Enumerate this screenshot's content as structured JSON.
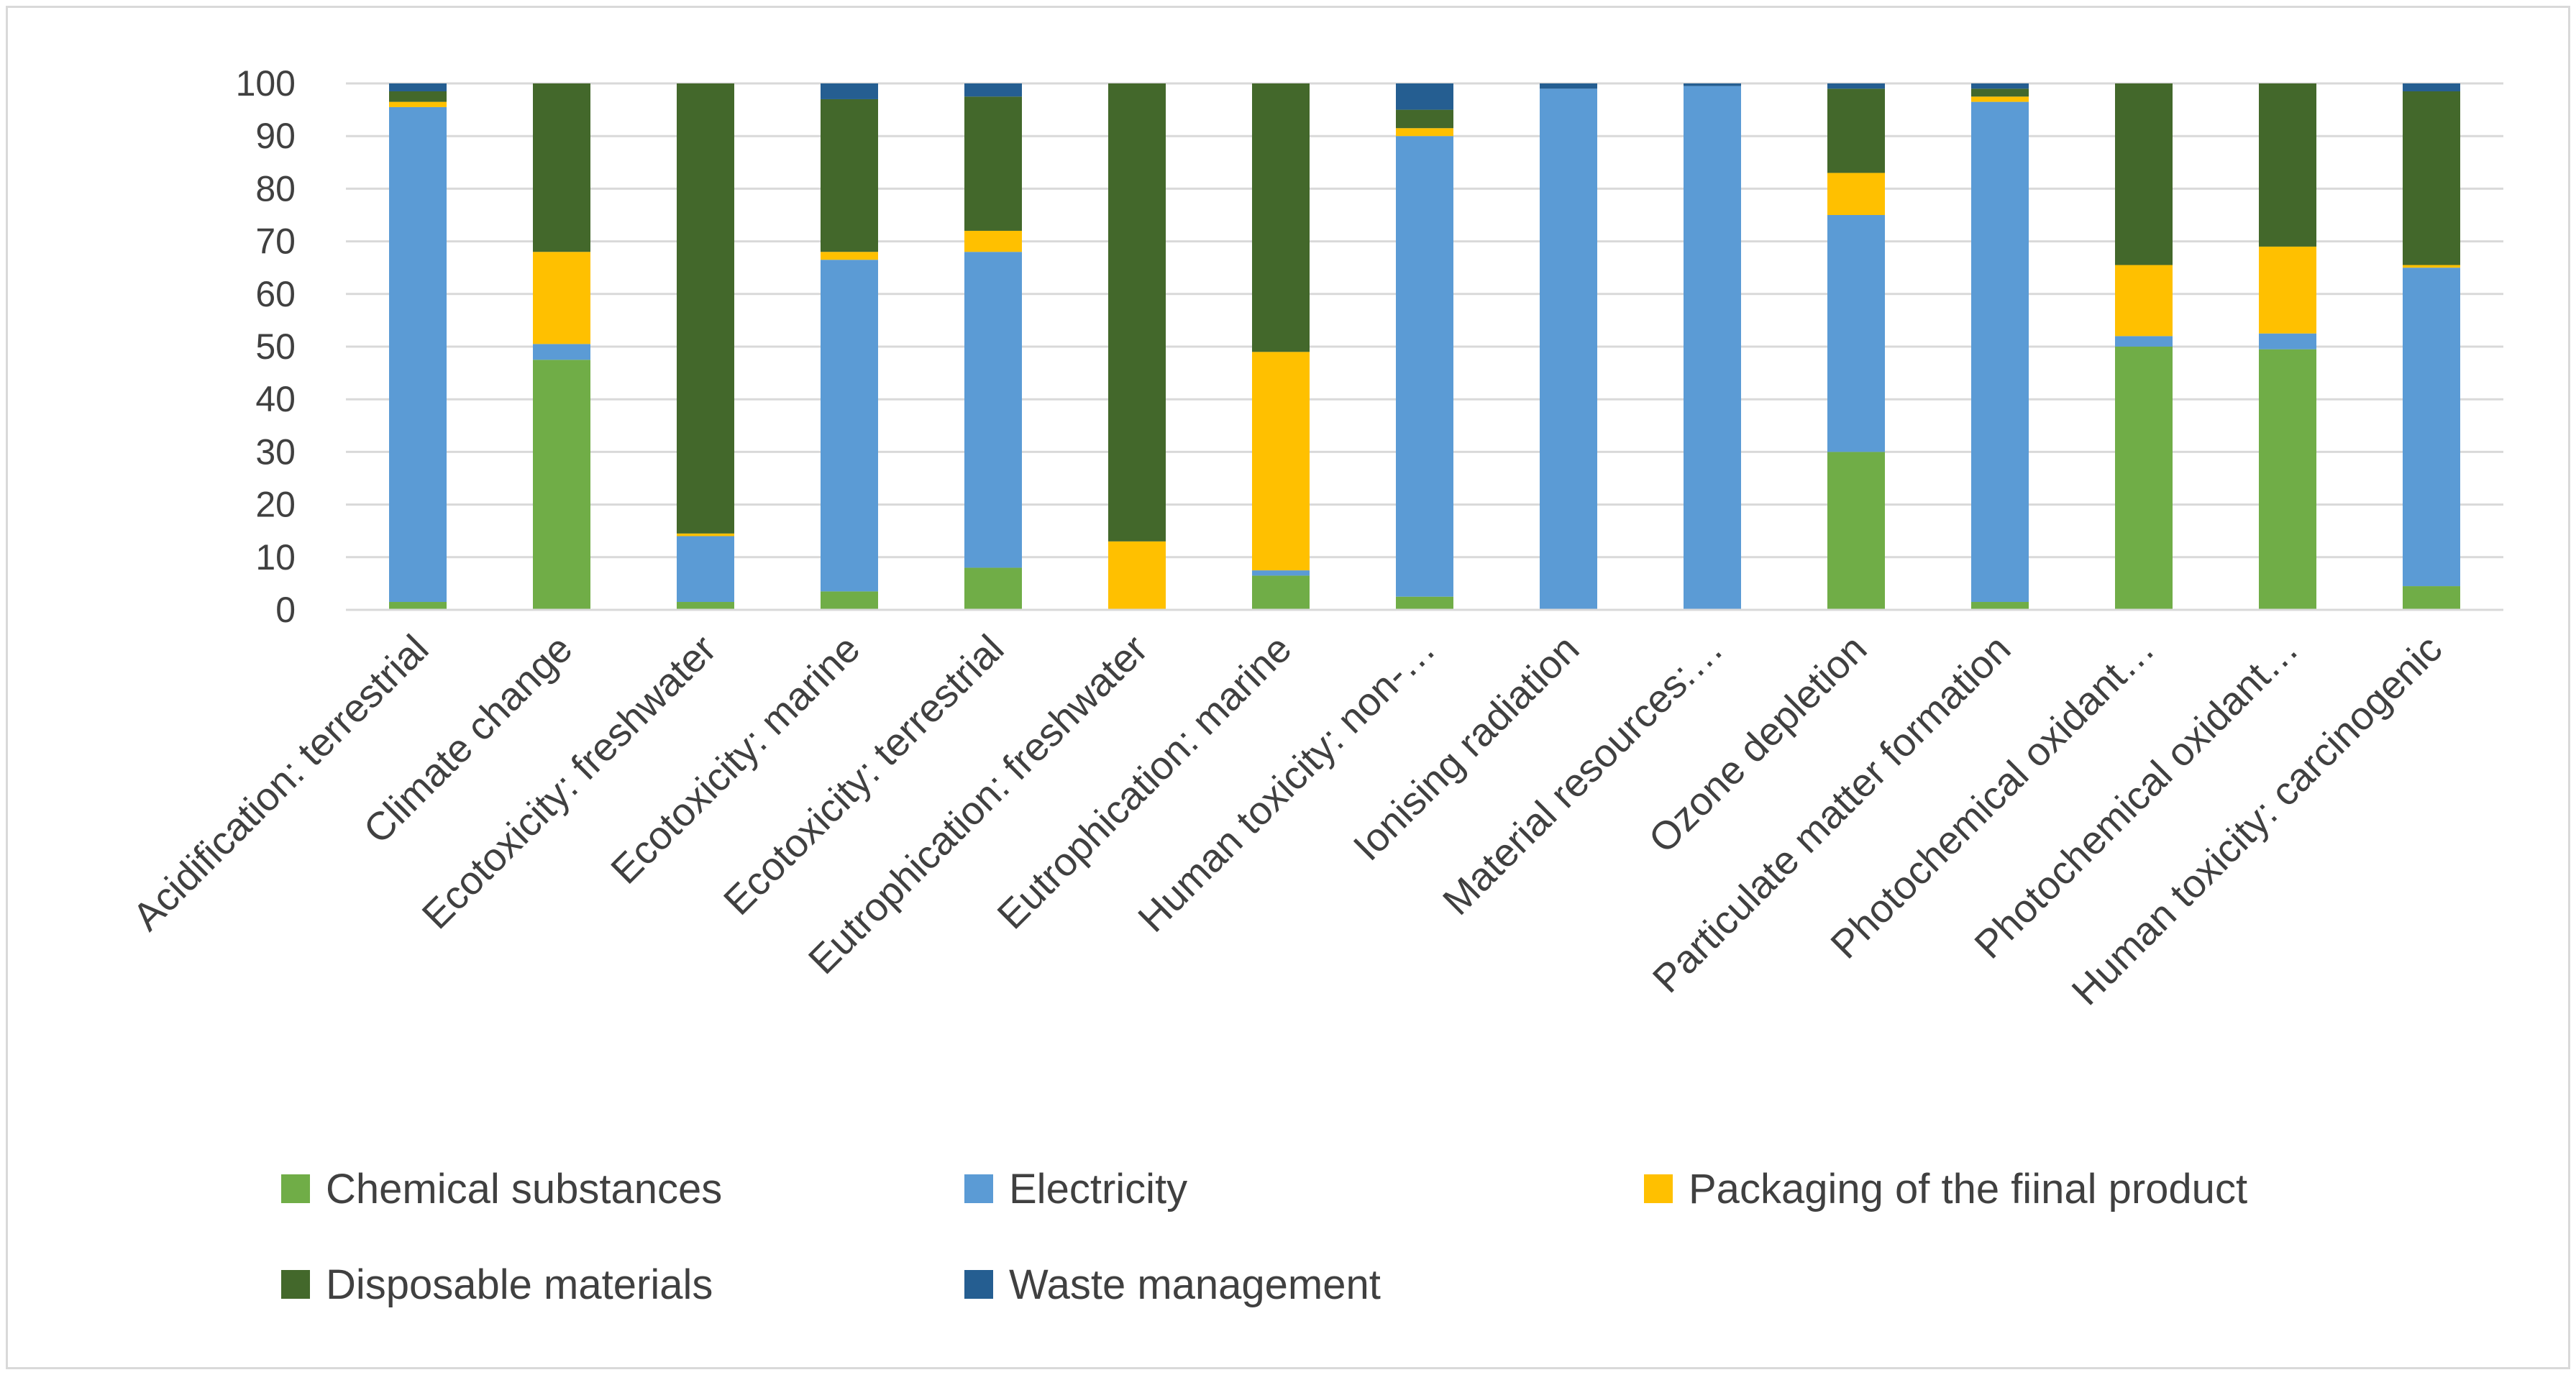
{
  "chart_data": {
    "type": "bar",
    "stacked": true,
    "title": "",
    "xlabel": "",
    "ylabel": "",
    "ylim": [
      0,
      100
    ],
    "yticks": [
      0,
      10,
      20,
      30,
      40,
      50,
      60,
      70,
      80,
      90,
      100
    ],
    "grid": true,
    "legend_position": "bottom",
    "categories": [
      "Acidification: terrestrial",
      "Climate change",
      "Ecotoxicity: freshwater",
      "Ecotoxicity: marine",
      "Ecotoxicity: terrestrial",
      "Eutrophication: freshwater",
      "Eutrophication: marine",
      "Human toxicity: non-…",
      "Ionising radiation",
      "Material resources:…",
      "Ozone depletion",
      "Particulate matter formation",
      "Photochemical oxidant…",
      "Photochemical oxidant…",
      "Human toxicity: carcinogenic"
    ],
    "series": [
      {
        "name": "Chemical substances",
        "color": "#70ad47",
        "values": [
          1.5,
          47.5,
          1.5,
          3.5,
          8,
          0,
          6.5,
          2.5,
          0,
          0,
          30,
          1.5,
          50,
          49.5,
          4.5
        ]
      },
      {
        "name": "Electricity",
        "color": "#5b9bd5",
        "values": [
          94,
          3,
          12.5,
          63,
          60,
          0,
          1,
          87.5,
          99,
          99.5,
          45,
          95,
          2,
          3,
          60.5
        ]
      },
      {
        "name": "Packaging of the fiinal product",
        "color": "#ffc000",
        "values": [
          1,
          17.5,
          0.5,
          1.5,
          4,
          13,
          41.5,
          1.5,
          0,
          0,
          8,
          1,
          13.5,
          16.5,
          0.5
        ]
      },
      {
        "name": "Disposable materials",
        "color": "#43682b",
        "values": [
          2,
          32,
          85.5,
          29,
          25.5,
          87,
          51,
          3.5,
          0,
          0,
          16,
          1.5,
          34.5,
          31,
          33
        ]
      },
      {
        "name": "Waste management",
        "color": "#255e91",
        "values": [
          1.5,
          0,
          0,
          3,
          2.5,
          0,
          0,
          5,
          1,
          0.5,
          1,
          1,
          0,
          0,
          1.5
        ]
      }
    ]
  },
  "style": {
    "gridline_color": "#d9d9d9",
    "text_color": "#404040",
    "border_color": "#d9d9d9"
  }
}
